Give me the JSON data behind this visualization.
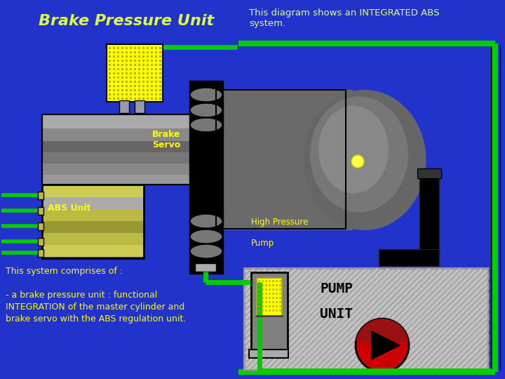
{
  "bg_color": "#2233CC",
  "title": "Brake Pressure Unit",
  "title_color": "#DDFF44",
  "subtitle": "This diagram shows an INTEGRATED ABS\nsystem.",
  "subtitle_color": "#DDFF88",
  "green": "#00CC00",
  "yellow": "#FFFF00",
  "black": "#000000",
  "red": "#CC0000",
  "dgray": "#444444",
  "mgray": "#777777",
  "lgray": "#AAAAAA",
  "gold": "#AAAA33",
  "label_brake_servo": "Brake\nServo",
  "label_abs_unit": "ABS Unit",
  "label_high_pressure": "High Pressure\n\nPump",
  "label_pump1": "PUMP",
  "label_pump2": "UNIT",
  "label_system": "This system comprises of :\n\n- a brake pressure unit : functional\nINTEGRATION of the master cylinder and\nbrake servo with the ABS regulation unit."
}
